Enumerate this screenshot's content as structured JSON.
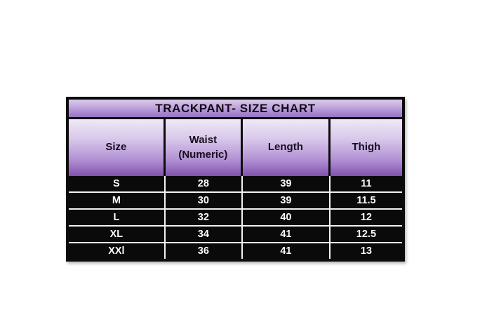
{
  "chart_data": {
    "type": "table",
    "title": "TRACKPANT- SIZE CHART",
    "columns": [
      "Size",
      "Waist (Numeric)",
      "Length",
      "Thigh"
    ],
    "rows": [
      [
        "S",
        "28",
        "39",
        "11"
      ],
      [
        "M",
        "30",
        "39",
        "11.5"
      ],
      [
        "L",
        "32",
        "40",
        "12"
      ],
      [
        "XL",
        "34",
        "41",
        "12.5"
      ],
      [
        "XXl",
        "36",
        "41",
        "13"
      ]
    ]
  },
  "colors": {
    "header_gradient_top": "#efe9f6",
    "header_gradient_bottom": "#7e52a8",
    "title_gradient_top": "#d9cbea",
    "title_gradient_bottom": "#9674c5",
    "table_border": "#0c0c0c",
    "data_background": "#0a0a0a",
    "data_text": "#fafafa",
    "page_background": "#ffffff"
  }
}
